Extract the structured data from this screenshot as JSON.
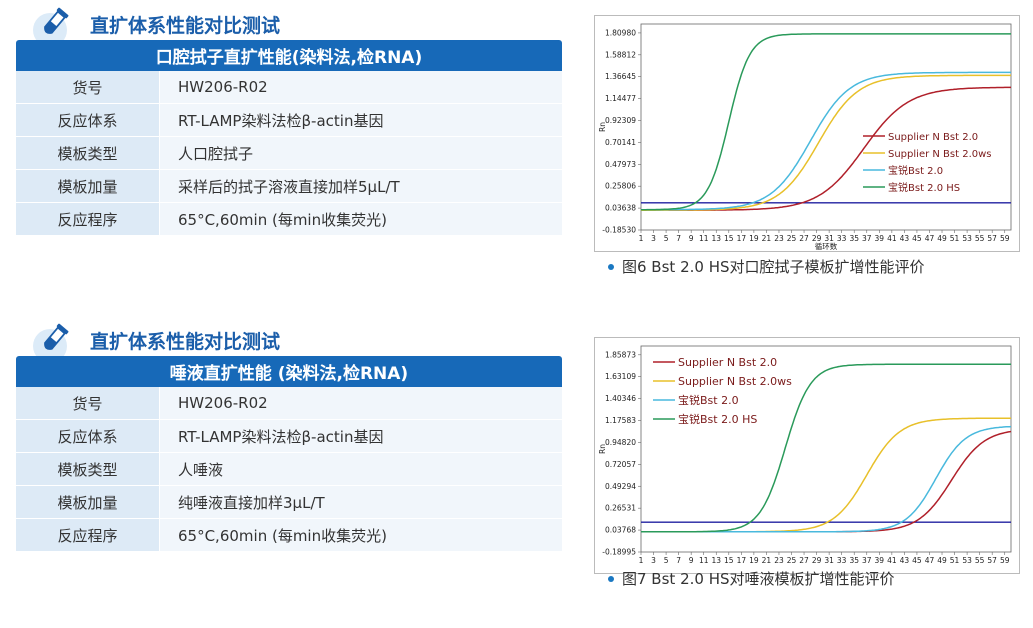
{
  "sections": [
    {
      "title": "直扩体系性能对比测试",
      "table_title": "口腔拭子直扩性能(染料法,检RNA)",
      "rows": [
        {
          "key": "货号",
          "value": "HW206-R02"
        },
        {
          "key": "反应体系",
          "value": "RT-LAMP染料法检β-actin基因"
        },
        {
          "key": "模板类型",
          "value": "人口腔拭子"
        },
        {
          "key": "模板加量",
          "value": "采样后的拭子溶液直接加样5μL/T"
        },
        {
          "key": "反应程序",
          "value": "65°C,60min (每min收集荧光)"
        }
      ]
    },
    {
      "title": "直扩体系性能对比测试",
      "table_title": "唾液直扩性能 (染料法,检RNA)",
      "rows": [
        {
          "key": "货号",
          "value": "HW206-R02"
        },
        {
          "key": "反应体系",
          "value": "RT-LAMP染料法检β-actin基因"
        },
        {
          "key": "模板类型",
          "value": "人唾液"
        },
        {
          "key": "模板加量",
          "value": "纯唾液直接加样3μL/T"
        },
        {
          "key": "反应程序",
          "value": "65°C,60min (每min收集荧光)"
        }
      ]
    }
  ],
  "captions": [
    "图6 Bst 2.0 HS对口腔拭子模板扩增性能评价",
    "图7 Bst 2.0 HS对唾液模板扩增性能评价"
  ],
  "colors": {
    "brand_blue": "#1769b8",
    "series_red": "#b0202a",
    "series_yellow": "#e8c02a",
    "series_cyan": "#49b9dd",
    "series_green": "#2a9a5a",
    "threshold_line": "#2020a0"
  },
  "chart_data": [
    {
      "type": "line",
      "ylabel": "Rn",
      "xlabel": "循环数",
      "x_ticks": [
        1,
        3,
        5,
        7,
        9,
        11,
        13,
        15,
        17,
        19,
        21,
        23,
        25,
        27,
        29,
        31,
        33,
        35,
        37,
        39,
        41,
        43,
        45,
        47,
        49,
        51,
        53,
        55,
        57,
        59
      ],
      "y_ticks": [
        "1.80980",
        "1.58812",
        "1.36645",
        "1.14477",
        "0.92309",
        "0.70141",
        "0.47973",
        "0.25806",
        "0.03638",
        "-0.18530"
      ],
      "ylim": [
        -0.1853,
        1.9
      ],
      "xlim": [
        1,
        60
      ],
      "threshold": 0.09,
      "legend_position": "right",
      "series": [
        {
          "name": "Supplier N Bst 2.0",
          "color": "#b0202a",
          "base": 0.015,
          "plateau": 1.26,
          "midpoint": 36.5,
          "slope": 0.28
        },
        {
          "name": "Supplier N Bst 2.0ws",
          "color": "#e8c02a",
          "base": 0.015,
          "plateau": 1.38,
          "midpoint": 29.3,
          "slope": 0.32
        },
        {
          "name": "宝锐Bst 2.0",
          "color": "#49b9dd",
          "base": 0.02,
          "plateau": 1.41,
          "midpoint": 28.0,
          "slope": 0.32
        },
        {
          "name": "宝锐Bst 2.0 HS",
          "color": "#2a9a5a",
          "base": 0.02,
          "plateau": 1.8,
          "midpoint": 15.0,
          "slope": 0.6
        }
      ]
    },
    {
      "type": "line",
      "ylabel": "Rn",
      "xlabel": "",
      "x_ticks": [
        1,
        3,
        5,
        7,
        9,
        11,
        13,
        15,
        17,
        19,
        21,
        23,
        25,
        27,
        29,
        31,
        33,
        35,
        37,
        39,
        41,
        43,
        45,
        47,
        49,
        51,
        53,
        55,
        57,
        59
      ],
      "y_ticks": [
        "1.85873",
        "1.63109",
        "1.40346",
        "1.17583",
        "0.94820",
        "0.72057",
        "0.49294",
        "0.26531",
        "0.03768",
        "-0.18995"
      ],
      "ylim": [
        -0.18995,
        1.95
      ],
      "xlim": [
        1,
        60
      ],
      "threshold": 0.12,
      "legend_position": "top-left",
      "series": [
        {
          "name": "Supplier N Bst 2.0",
          "color": "#b0202a",
          "base": 0.02,
          "plateau": 1.09,
          "midpoint": 50.5,
          "slope": 0.38
        },
        {
          "name": "Supplier N Bst 2.0ws",
          "color": "#e8c02a",
          "base": 0.02,
          "plateau": 1.2,
          "midpoint": 37.0,
          "slope": 0.38
        },
        {
          "name": "宝锐Bst 2.0",
          "color": "#49b9dd",
          "base": 0.02,
          "plateau": 1.12,
          "midpoint": 48.0,
          "slope": 0.42
        },
        {
          "name": "宝锐Bst 2.0 HS",
          "color": "#2a9a5a",
          "base": 0.02,
          "plateau": 1.76,
          "midpoint": 24.0,
          "slope": 0.5
        }
      ]
    }
  ]
}
